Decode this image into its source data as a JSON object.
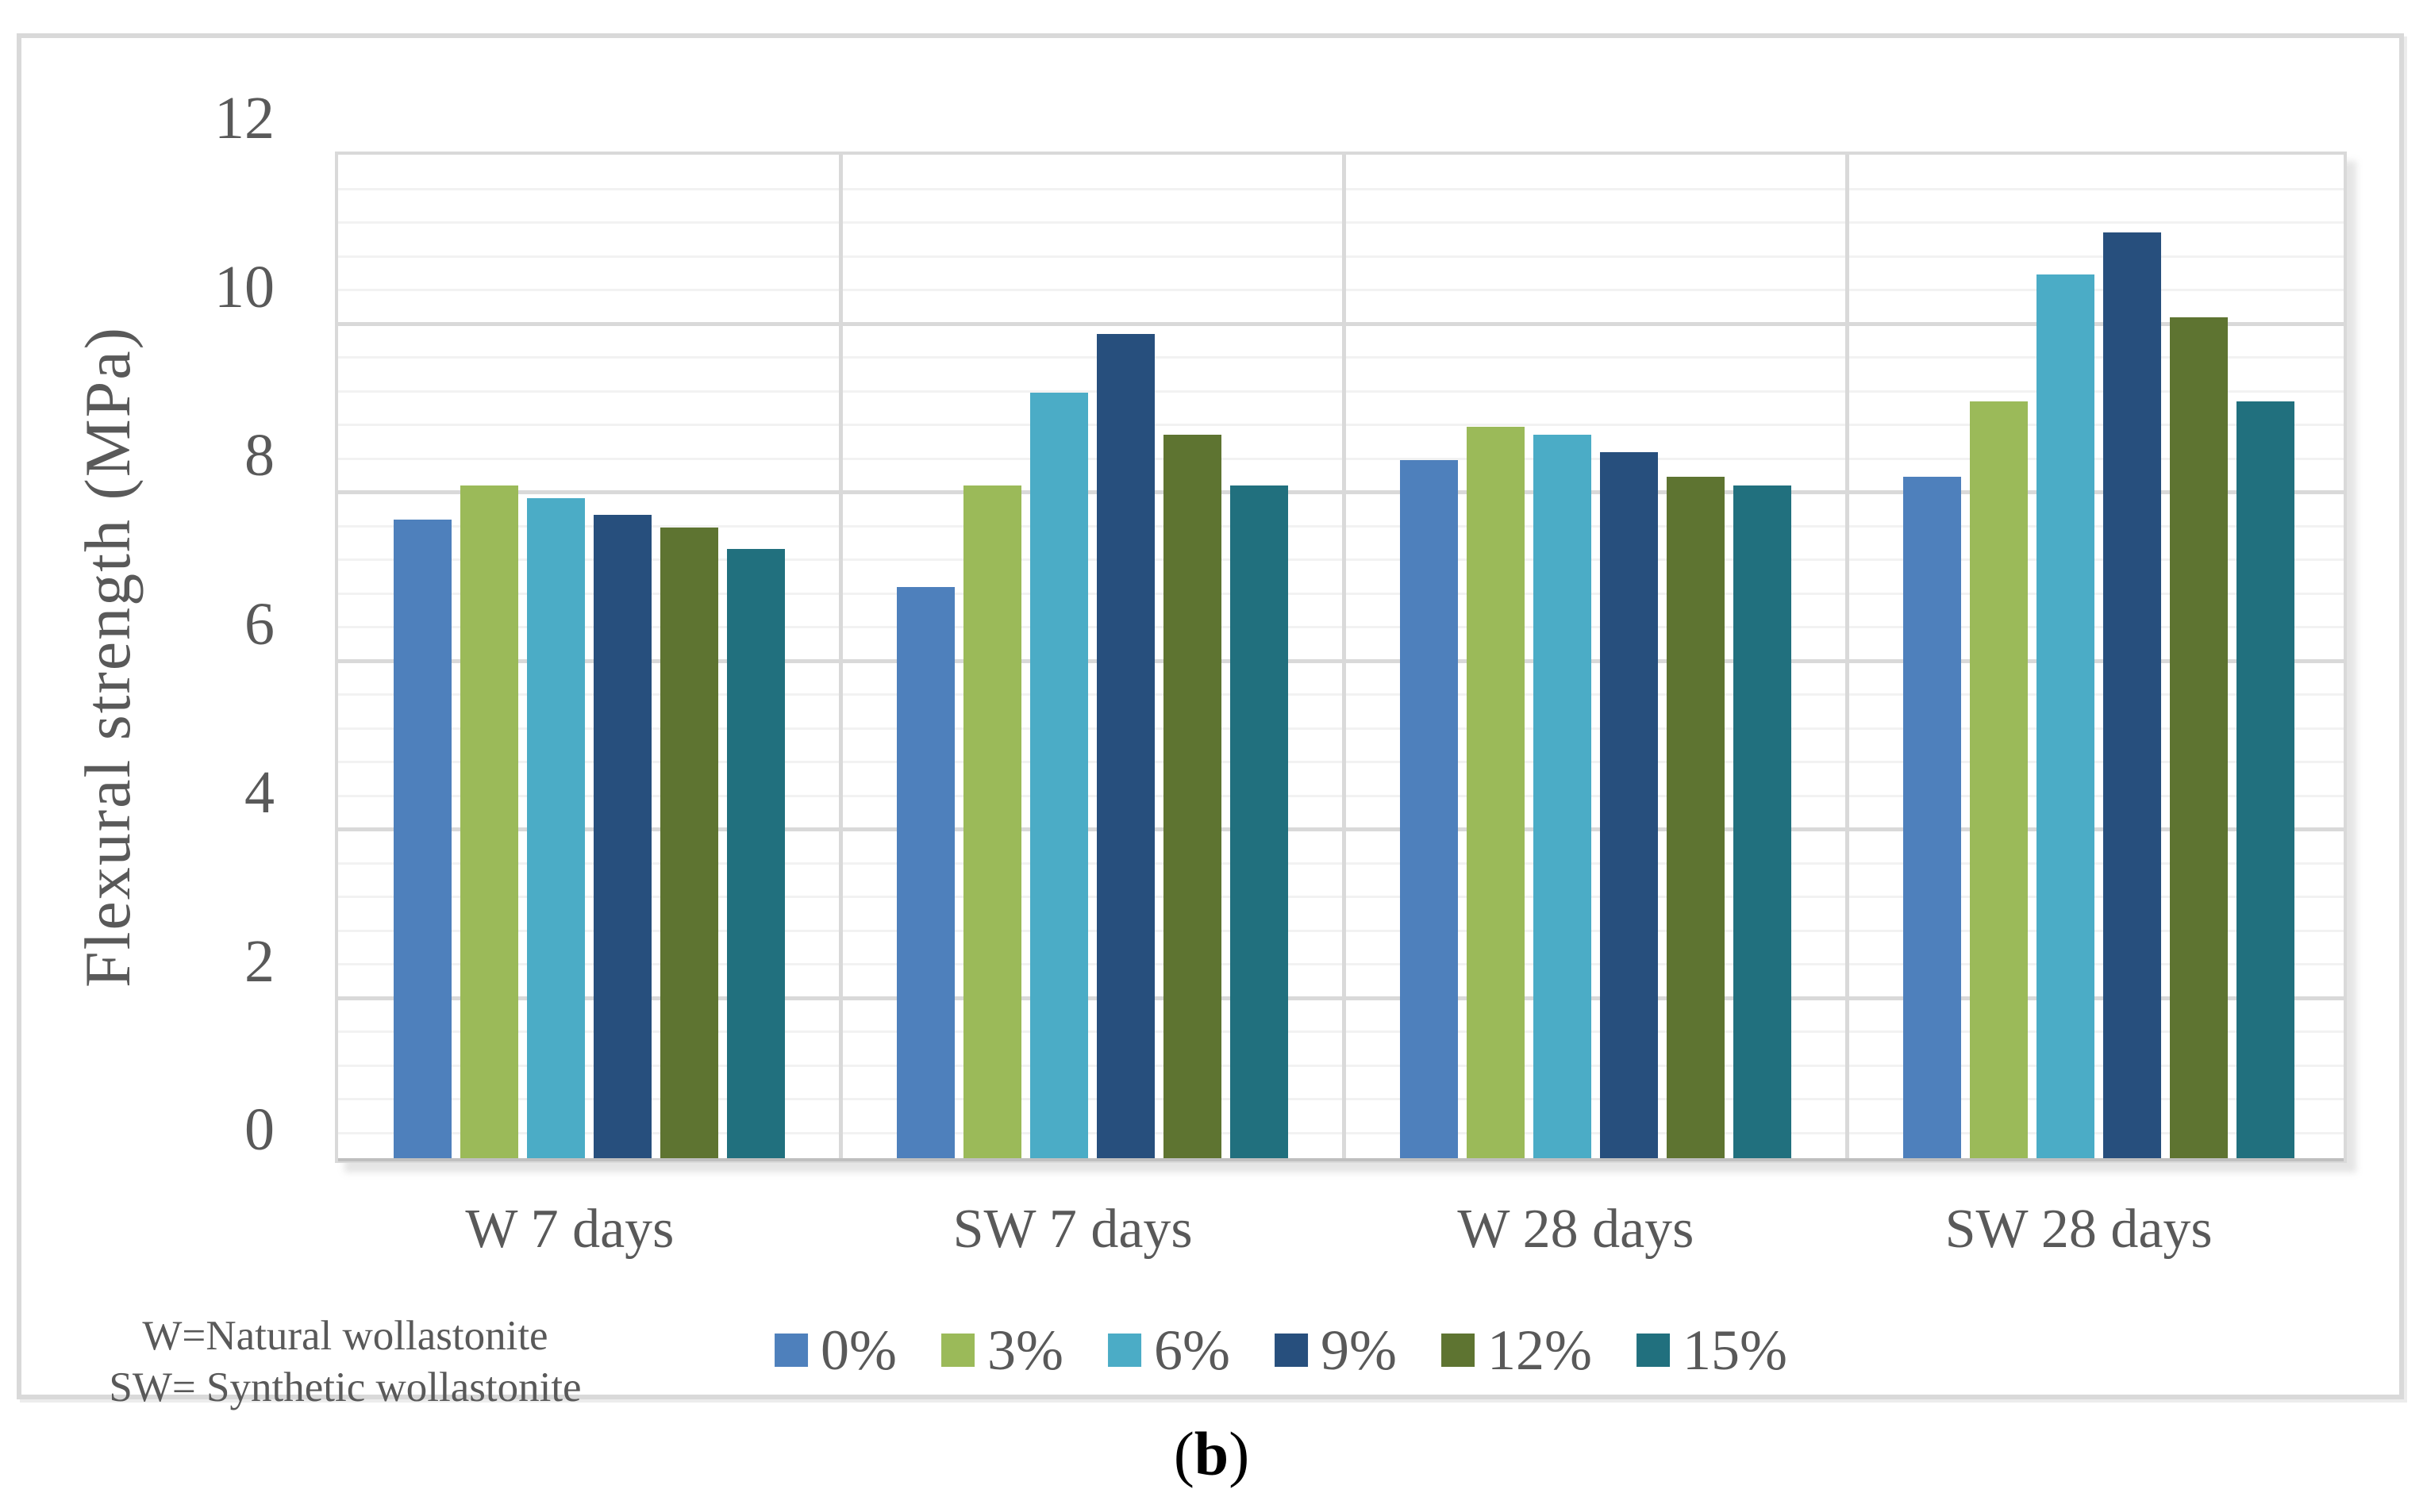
{
  "notes": {
    "line1": "W=Natural wollastonite",
    "line2": "SW= Synthetic wollastonite"
  },
  "caption": {
    "open": "(",
    "letter": "b",
    "close": ")"
  },
  "style": {
    "text_color": "#595959",
    "major_grid_color": "#d9d9d9",
    "minor_grid_color": "#f2f2f2",
    "axis_line_color": "#bfbfbf",
    "frame_border_color": "#d9d9d9"
  },
  "chart_data": {
    "type": "bar",
    "title": "",
    "xlabel": "",
    "ylabel": "Flexural strength (MPa)",
    "ylim": [
      0,
      12
    ],
    "y_major_unit": 2,
    "y_minor_unit": 0.4,
    "y_ticks": [
      0,
      2,
      4,
      6,
      8,
      10,
      12
    ],
    "grid": true,
    "legend_position": "bottom",
    "categories": [
      "W 7 days",
      "SW 7 days",
      "W 28 days",
      "SW 28 days"
    ],
    "series": [
      {
        "name": "0%",
        "color": "#4E80BC",
        "values": [
          7.6,
          6.8,
          8.3,
          8.1
        ]
      },
      {
        "name": "3%",
        "color": "#9BBA59",
        "values": [
          8.0,
          8.0,
          8.7,
          9.0
        ]
      },
      {
        "name": "6%",
        "color": "#4BACC6",
        "values": [
          7.85,
          9.1,
          8.6,
          10.5
        ]
      },
      {
        "name": "9%",
        "color": "#274F7D",
        "values": [
          7.65,
          9.8,
          8.4,
          11.0
        ]
      },
      {
        "name": "12%",
        "color": "#5E7431",
        "values": [
          7.5,
          8.6,
          8.1,
          10.0
        ]
      },
      {
        "name": "15%",
        "color": "#21707E",
        "values": [
          7.25,
          8.0,
          8.0,
          9.0
        ]
      }
    ]
  }
}
